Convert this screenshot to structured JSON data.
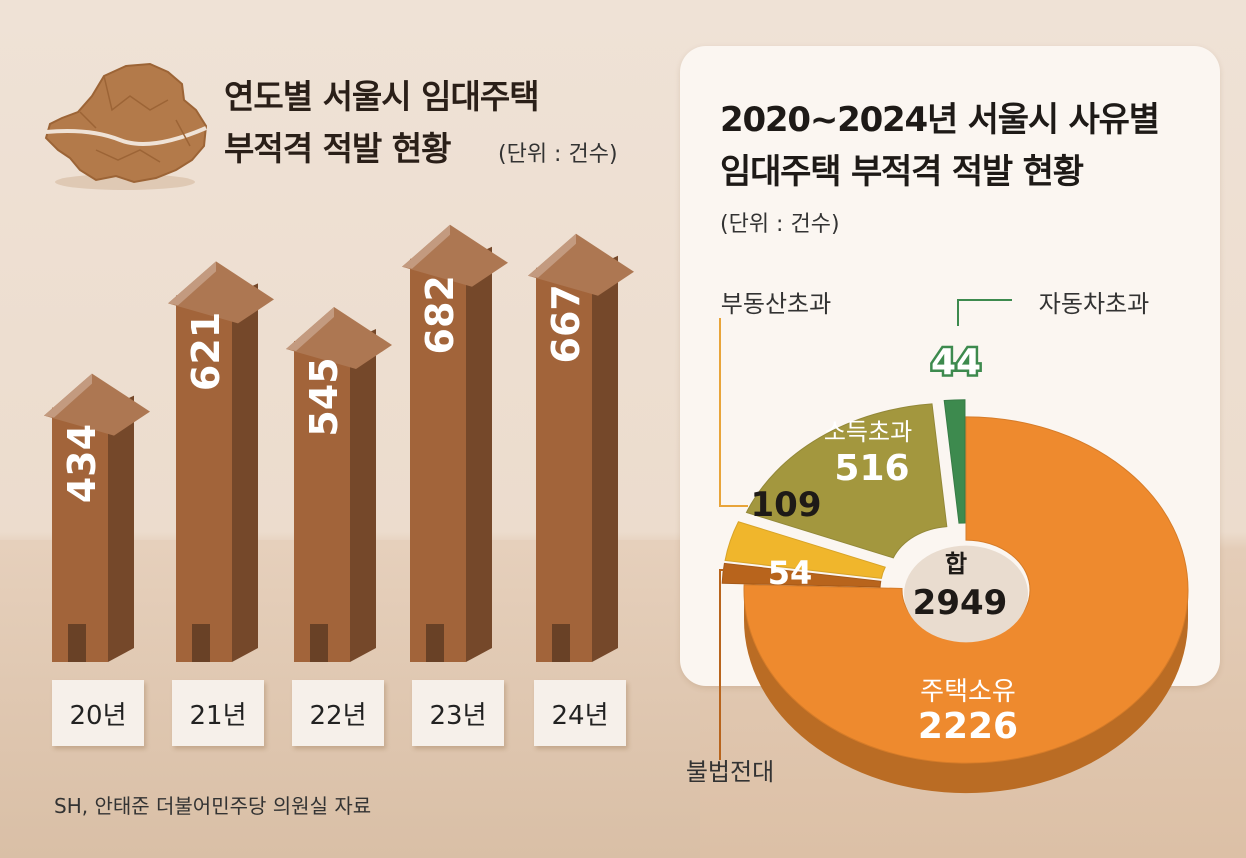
{
  "chart_data": [
    {
      "type": "bar",
      "title": "연도별 서울시 임대주택 부적격 적발 현황",
      "unit": "(단위 : 건수)",
      "categories": [
        "20년",
        "21년",
        "22년",
        "23년",
        "24년"
      ],
      "values": [
        434,
        621,
        545,
        682,
        667
      ],
      "bar_color": "#a2643a"
    },
    {
      "type": "pie",
      "title": "2020~2024년 서울시 사유별 임대주택 부적격 적발 현황",
      "unit": "(단위 : 건수)",
      "total_label": "합",
      "total": 2949,
      "slices": [
        {
          "name": "주택소유",
          "value": 2226,
          "color": "#ee8a2e"
        },
        {
          "name": "불법전대",
          "value": 54,
          "color": "#b8641c"
        },
        {
          "name": "부동산초과",
          "value": 109,
          "color": "#f0b62c"
        },
        {
          "name": "소득초과",
          "value": 516,
          "color": "#a3973e"
        },
        {
          "name": "자동차초과",
          "value": 44,
          "color": "#3d8a4e"
        }
      ]
    }
  ],
  "left_title_line1": "연도별 서울시 임대주택",
  "left_title_line2": "부적격 적발 현황",
  "left_unit": "(단위 : 건수)",
  "right_title_line1": "2020~2024년 서울시 사유별",
  "right_title_line2": "임대주택 부적격 적발 현황",
  "right_unit": "(단위 : 건수)",
  "source": "SH, 안태준 더불어민주당 의원실 자료"
}
